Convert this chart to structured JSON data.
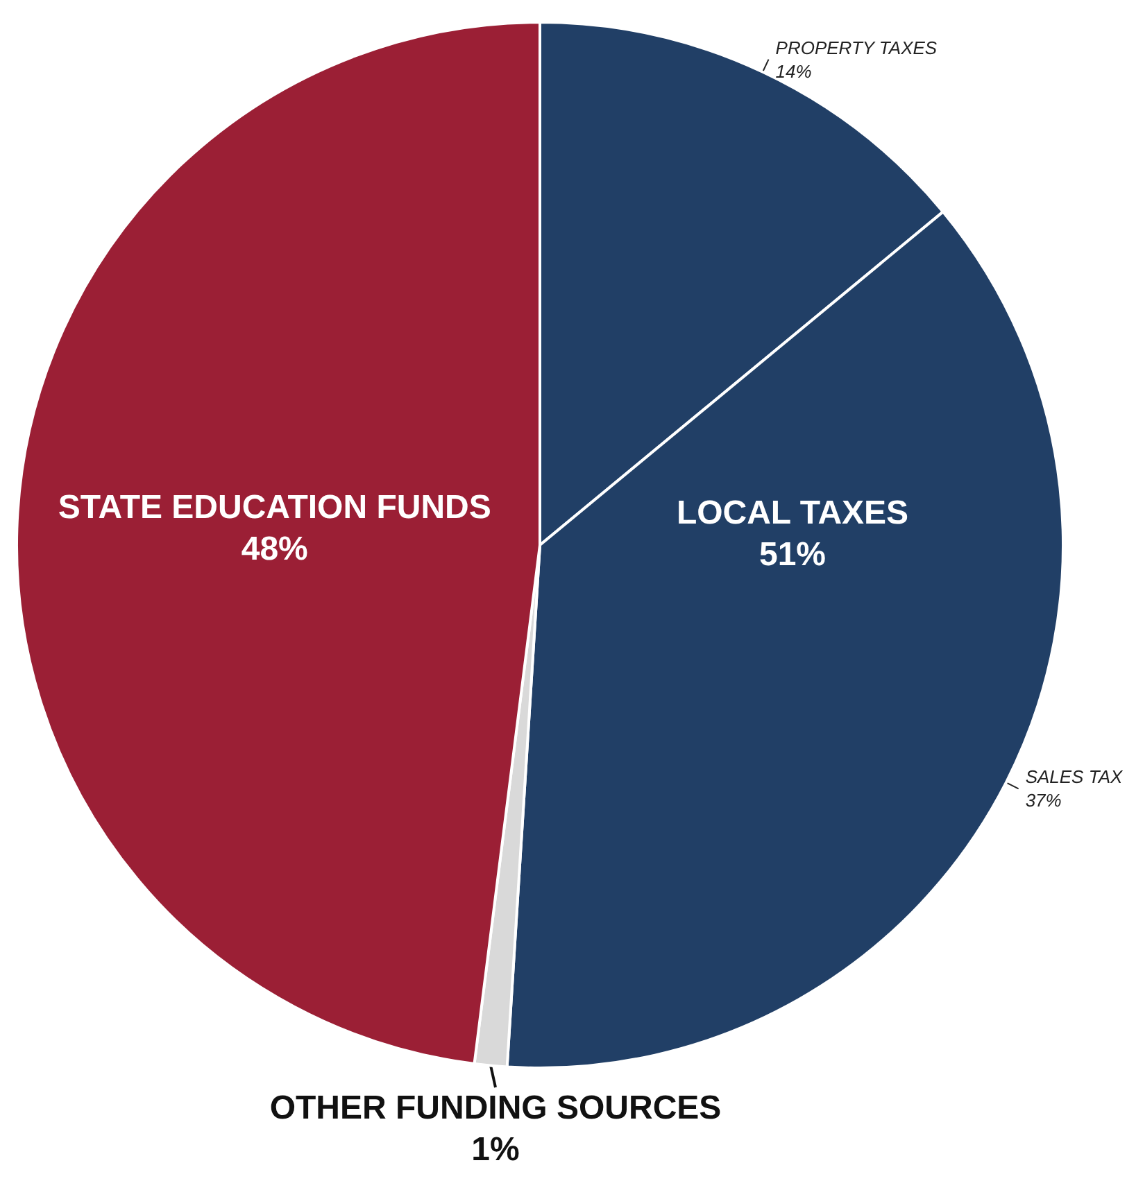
{
  "chart_data": {
    "type": "pie",
    "categories": [
      "PROPERTY TAXES",
      "SALES TAX",
      "OTHER FUNDING SOURCES",
      "STATE EDUCATION FUNDS"
    ],
    "values": [
      14,
      37,
      1,
      48
    ],
    "colors": [
      "#213f66",
      "#213f66",
      "#d9d9d9",
      "#9b1f35"
    ],
    "value_labels": [
      "14%",
      "37%",
      "1%",
      "48%"
    ],
    "annotations": [
      "LOCAL TAXES",
      "51%"
    ],
    "legend": false
  }
}
